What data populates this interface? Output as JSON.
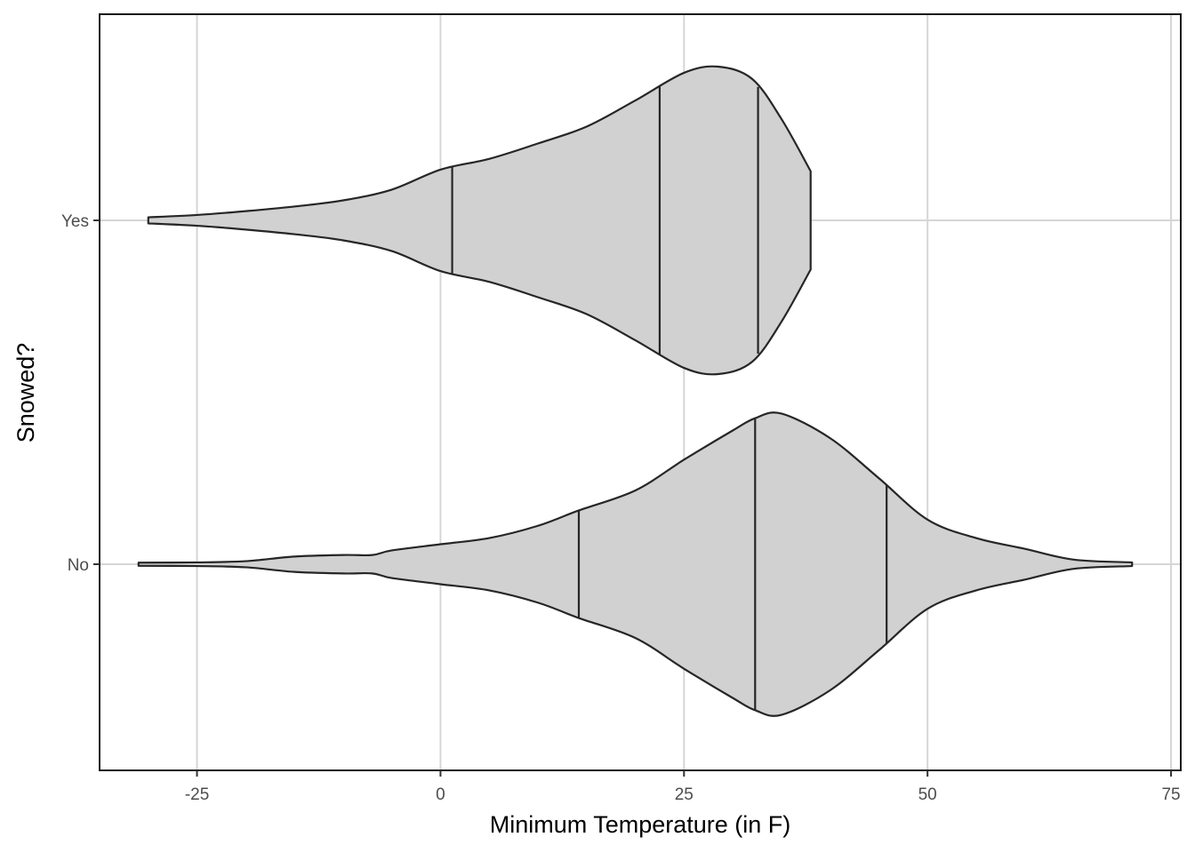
{
  "chart_data": {
    "type": "violin",
    "orientation": "horizontal",
    "title": "",
    "xlabel": "Minimum Temperature (in F)",
    "ylabel": "Snowed?",
    "xlim": [
      -35,
      76
    ],
    "x_ticks": [
      -25,
      0,
      25,
      50,
      75
    ],
    "x_tick_labels": [
      "-25",
      "0",
      "25",
      "50",
      "75"
    ],
    "categories": [
      "Yes",
      "No"
    ],
    "grid": true,
    "fill_color": "#d1d1d1",
    "outline_color": "#262626",
    "series": [
      {
        "category": "Yes",
        "min": -30,
        "max": 38,
        "quantiles": [
          1.2,
          22.5,
          32.6
        ],
        "density": [
          [
            -30,
            0.02
          ],
          [
            -25,
            0.035
          ],
          [
            -20,
            0.06
          ],
          [
            -15,
            0.09
          ],
          [
            -10,
            0.13
          ],
          [
            -5,
            0.2
          ],
          [
            0,
            0.33
          ],
          [
            5,
            0.4
          ],
          [
            10,
            0.5
          ],
          [
            15,
            0.61
          ],
          [
            20,
            0.78
          ],
          [
            25,
            0.96
          ],
          [
            28.5,
            1.0
          ],
          [
            32,
            0.92
          ],
          [
            35,
            0.66
          ],
          [
            38,
            0.32
          ]
        ]
      },
      {
        "category": "No",
        "min": -31,
        "max": 71,
        "quantiles": [
          14.2,
          32.3,
          45.8
        ],
        "density": [
          [
            -31,
            0.01
          ],
          [
            -25,
            0.012
          ],
          [
            -20,
            0.02
          ],
          [
            -15,
            0.05
          ],
          [
            -10,
            0.06
          ],
          [
            -7,
            0.06
          ],
          [
            -5,
            0.09
          ],
          [
            0,
            0.13
          ],
          [
            5,
            0.17
          ],
          [
            10,
            0.25
          ],
          [
            14.2,
            0.35
          ],
          [
            20,
            0.48
          ],
          [
            25,
            0.68
          ],
          [
            30,
            0.87
          ],
          [
            32.3,
            0.95
          ],
          [
            35,
            0.98
          ],
          [
            40,
            0.82
          ],
          [
            45,
            0.56
          ],
          [
            50,
            0.29
          ],
          [
            55,
            0.17
          ],
          [
            60,
            0.1
          ],
          [
            65,
            0.03
          ],
          [
            71,
            0.012
          ]
        ]
      }
    ]
  }
}
